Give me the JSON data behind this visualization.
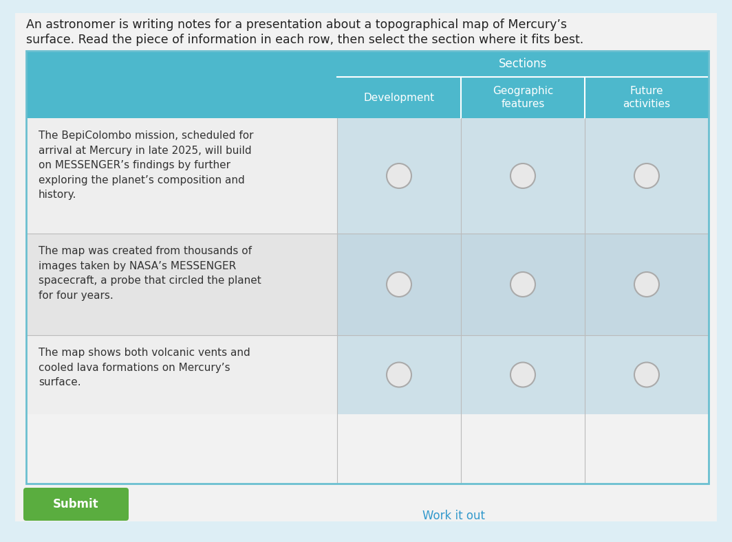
{
  "background_color": "#ddeef5",
  "page_bg": "#f5f5f5",
  "title_text_line1": "An astronomer is writing notes for a presentation about a topographical map of Mercury’s",
  "title_text_line2": "surface. Read the piece of information in each row, then select the section where it fits best.",
  "title_fontsize": 12.5,
  "title_color": "#222222",
  "header_top_bg": "#4db8cc",
  "header_top_text": "Sections",
  "header_top_text_color": "#ffffff",
  "header_sub_bg": "#4db8cc",
  "header_sub_text_color": "#ffffff",
  "col_headers": [
    "Development",
    "Geographic\nfeatures",
    "Future\nactivities"
  ],
  "row_texts": [
    "The BepiColombo mission, scheduled for\narrival at Mercury in late 2025, will build\non MESSENGER’s findings by further\nexploring the planet’s composition and\nhistory.",
    "The map was created from thousands of\nimages taken by NASA’s MESSENGER\nspacecraft, a probe that circled the planet\nfor four years.",
    "The map shows both volcanic vents and\ncooled lava formations on Mercury’s\nsurface."
  ],
  "row_text_color": "#333333",
  "row_bg_odd": "#eeeeee",
  "row_bg_even": "#e4e4e4",
  "cell_bg_odd": "#cde0e8",
  "cell_bg_even": "#c4d8e2",
  "radio_edge_color": "#aaaaaa",
  "radio_face_color": "#e8e8e8",
  "border_color": "#6bbfd0",
  "divider_color": "#bbbbbb",
  "submit_bg": "#5aad3f",
  "submit_text": "Submit",
  "submit_text_color": "#ffffff",
  "work_it_out_text": "Work it out",
  "work_it_out_color": "#3399cc",
  "left_teal_bg": "#4db8cc"
}
